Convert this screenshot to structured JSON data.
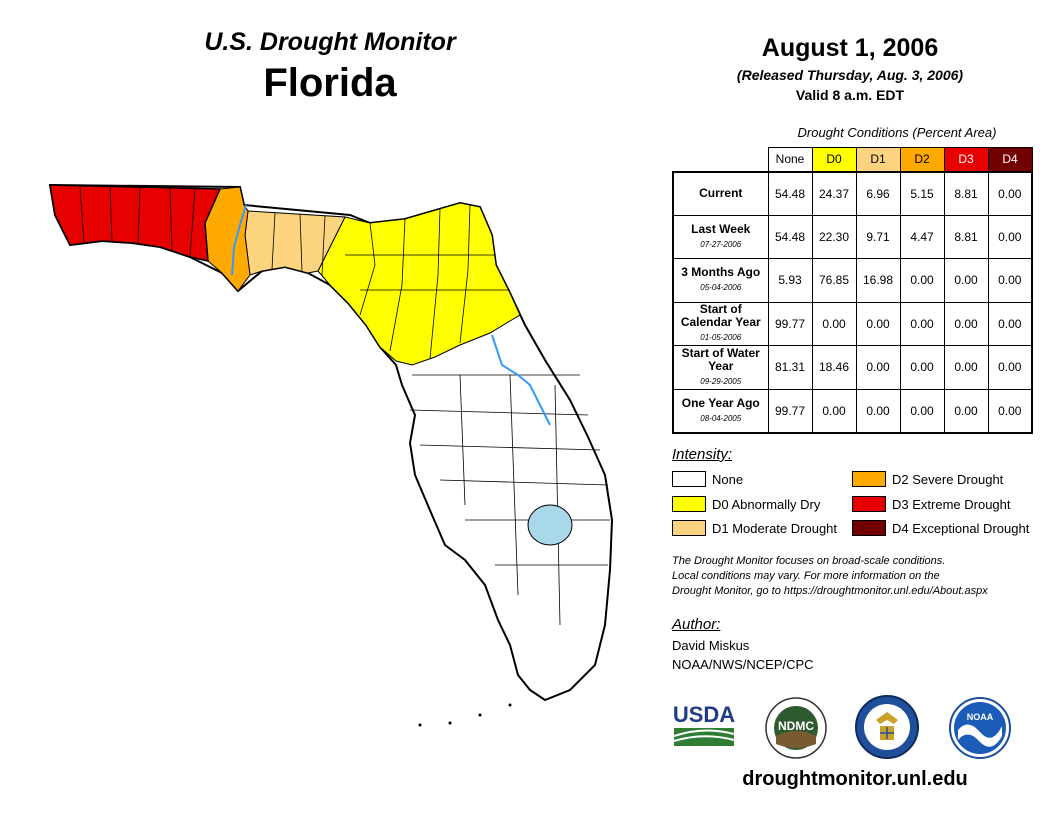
{
  "header": {
    "subtitle": "U.S. Drought Monitor",
    "state": "Florida",
    "date": "August 1, 2006",
    "released": "(Released Thursday, Aug. 3, 2006)",
    "valid": "Valid 8 a.m. EDT"
  },
  "conditions": {
    "caption": "Drought Conditions (Percent Area)",
    "columns": [
      "None",
      "D0",
      "D1",
      "D2",
      "D3",
      "D4"
    ],
    "rows": [
      {
        "label": "Current",
        "date": "",
        "values": [
          "54.48",
          "24.37",
          "6.96",
          "5.15",
          "8.81",
          "0.00"
        ]
      },
      {
        "label": "Last Week",
        "date": "07-27-2006",
        "values": [
          "54.48",
          "22.30",
          "9.71",
          "4.47",
          "8.81",
          "0.00"
        ]
      },
      {
        "label": "3 Months Ago",
        "date": "05-04-2006",
        "values": [
          "5.93",
          "76.85",
          "16.98",
          "0.00",
          "0.00",
          "0.00"
        ]
      },
      {
        "label": "Start of Calendar Year",
        "date": "01-05-2006",
        "values": [
          "99.77",
          "0.00",
          "0.00",
          "0.00",
          "0.00",
          "0.00"
        ]
      },
      {
        "label": "Start of Water Year",
        "date": "09-29-2005",
        "values": [
          "81.31",
          "18.46",
          "0.00",
          "0.00",
          "0.00",
          "0.00"
        ]
      },
      {
        "label": "One Year Ago",
        "date": "08-04-2005",
        "values": [
          "99.77",
          "0.00",
          "0.00",
          "0.00",
          "0.00",
          "0.00"
        ]
      }
    ]
  },
  "legend": {
    "title": "Intensity:",
    "items": [
      {
        "label": "None",
        "color": "#ffffff"
      },
      {
        "label": "D0 Abnormally Dry",
        "color": "#ffff00"
      },
      {
        "label": "D1 Moderate Drought",
        "color": "#fcd37f"
      },
      {
        "label": "D2 Severe Drought",
        "color": "#ffaa00"
      },
      {
        "label": "D3 Extreme Drought",
        "color": "#e60000"
      },
      {
        "label": "D4 Exceptional Drought",
        "color": "#730000"
      }
    ]
  },
  "note": {
    "line1": "The Drought Monitor focuses on broad-scale conditions.",
    "line2": "Local conditions may vary. For more information on the",
    "line3": "Drought Monitor, go to https://droughtmonitor.unl.edu/About.aspx"
  },
  "author": {
    "title": "Author:",
    "name": "David Miskus",
    "org": "NOAA/NWS/NCEP/CPC"
  },
  "logos": {
    "usda": "USDA",
    "ndmc": "NDMC",
    "noaa": "NOAA"
  },
  "website": "droughtmonitor.unl.edu"
}
